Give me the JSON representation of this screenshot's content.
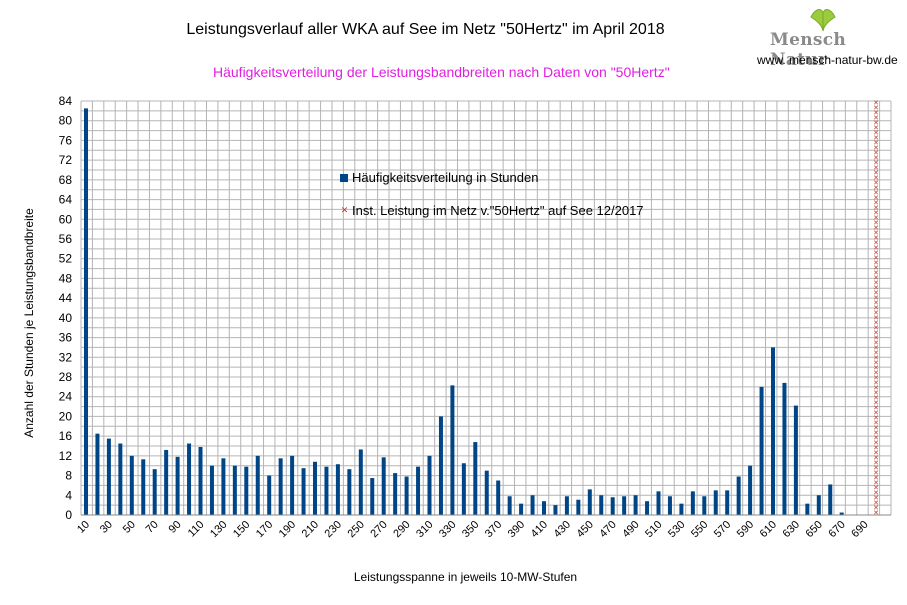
{
  "header": {
    "title": "Leistungsverlauf aller WKA auf See im Netz \"50Hertz\" im April 2018",
    "subtitle": "Häufigkeitsverteilung der Leistungsbandbreiten nach Daten von \"50Hertz\"",
    "brand": "Mensch Natur",
    "brand_url": "www. mensch-natur-bw.de"
  },
  "colors": {
    "bar": "#004586",
    "capacity": "#c0392b",
    "grid": "#b4b4b4",
    "subtitle": "#e020e0"
  },
  "chart_data": {
    "type": "bar",
    "title": "Leistungsverlauf aller WKA auf See im Netz \"50Hertz\" im April 2018",
    "subtitle": "Häufigkeitsverteilung der Leistungsbandbreiten nach Daten von \"50Hertz\"",
    "xlabel": "Leistungsspanne in jeweils 10-MW-Stufen",
    "ylabel": "Anzahl der Stunden je Leistungsbandbreite",
    "ylim": [
      0,
      84
    ],
    "y_ticks": [
      0,
      4,
      8,
      12,
      16,
      20,
      24,
      28,
      32,
      36,
      40,
      44,
      48,
      52,
      56,
      60,
      64,
      68,
      72,
      76,
      80,
      84
    ],
    "grid": true,
    "x_tick_labels": [
      "10",
      "30",
      "50",
      "70",
      "90",
      "110",
      "130",
      "150",
      "170",
      "190",
      "210",
      "230",
      "250",
      "270",
      "290",
      "310",
      "330",
      "350",
      "370",
      "390",
      "410",
      "430",
      "450",
      "470",
      "490",
      "510",
      "530",
      "550",
      "570",
      "590",
      "610",
      "630",
      "650",
      "670",
      "690"
    ],
    "categories": [
      10,
      20,
      30,
      40,
      50,
      60,
      70,
      80,
      90,
      100,
      110,
      120,
      130,
      140,
      150,
      160,
      170,
      180,
      190,
      200,
      210,
      220,
      230,
      240,
      250,
      260,
      270,
      280,
      290,
      300,
      310,
      320,
      330,
      340,
      350,
      360,
      370,
      380,
      390,
      400,
      410,
      420,
      430,
      440,
      450,
      460,
      470,
      480,
      490,
      500,
      510,
      520,
      530,
      540,
      550,
      560,
      570,
      580,
      590,
      600,
      610,
      620,
      630,
      640,
      650,
      660,
      670,
      680,
      690,
      700
    ],
    "series": [
      {
        "name": "Häufigkeitsverteilung in Stunden",
        "values": [
          82.5,
          16.5,
          15.5,
          14.5,
          12,
          11.3,
          9.3,
          13.2,
          11.8,
          14.5,
          13.8,
          10,
          11.5,
          10,
          9.8,
          12,
          8,
          11.5,
          12,
          9.5,
          10.8,
          9.8,
          10.3,
          9.3,
          13.3,
          7.5,
          11.7,
          8.5,
          7.8,
          9.8,
          12,
          20,
          26.3,
          10.5,
          14.8,
          9,
          7,
          3.8,
          2.3,
          4,
          2.8,
          2,
          3.8,
          3.1,
          5.2,
          4,
          3.6,
          3.8,
          4,
          2.8,
          4.8,
          3.8,
          2.3,
          4.8,
          3.8,
          5,
          5,
          7.8,
          10,
          26,
          34,
          26.8,
          22.2,
          2.3,
          4,
          6.2,
          0.5,
          0,
          0,
          0
        ]
      },
      {
        "name": "Inst. Leistung im Netz v.\"50Hertz\" auf See 12/2017",
        "category": 700,
        "value": 84
      }
    ]
  }
}
